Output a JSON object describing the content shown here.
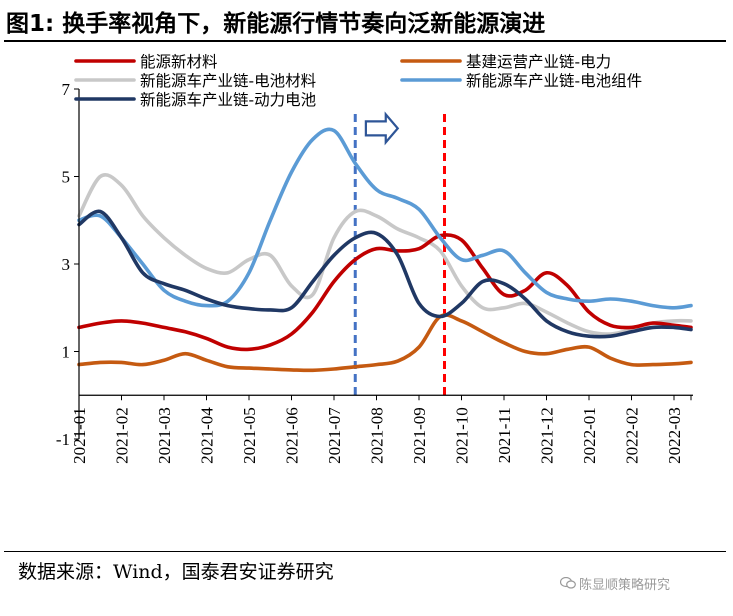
{
  "title": "图1: 换手率视角下，新能源行情节奏向泛新能源演进",
  "source": "数据来源：Wind，国泰君安证券研究",
  "watermark": "陈显顺策略研究",
  "watermark_icon": "wechat-icon",
  "chart_data": {
    "type": "line",
    "xlabel": "",
    "ylabel": "",
    "ylim": [
      -1,
      7
    ],
    "yticks": [
      -1,
      1,
      3,
      5,
      7
    ],
    "x_tick_labels": [
      "2021-01",
      "2021-02",
      "2021-03",
      "2021-04",
      "2021-05",
      "2021-06",
      "2021-07",
      "2021-08",
      "2021-09",
      "2021-10",
      "2021-11",
      "2021-12",
      "2022-01",
      "2022-02",
      "2022-03"
    ],
    "x_range": [
      0,
      14.4
    ],
    "grid": false,
    "legend_position": "top",
    "series": [
      {
        "name": "能源新材料",
        "color": "#C00000",
        "x": [
          0,
          0.5,
          1,
          1.5,
          2,
          2.5,
          3,
          3.5,
          4,
          4.5,
          5,
          5.5,
          6,
          6.5,
          7,
          7.5,
          8,
          8.5,
          9,
          9.5,
          10,
          10.5,
          11,
          11.5,
          12,
          12.5,
          13,
          13.5,
          14,
          14.4
        ],
        "y": [
          1.55,
          1.65,
          1.7,
          1.65,
          1.55,
          1.45,
          1.3,
          1.1,
          1.05,
          1.15,
          1.4,
          1.9,
          2.6,
          3.1,
          3.35,
          3.3,
          3.35,
          3.65,
          3.55,
          2.9,
          2.3,
          2.4,
          2.8,
          2.5,
          1.9,
          1.6,
          1.55,
          1.65,
          1.6,
          1.55
        ]
      },
      {
        "name": "基建运营产业链-电力",
        "color": "#C55A11",
        "x": [
          0,
          0.5,
          1,
          1.5,
          2,
          2.5,
          3,
          3.5,
          4,
          4.5,
          5,
          5.5,
          6,
          6.5,
          7,
          7.5,
          8,
          8.5,
          9,
          9.5,
          10,
          10.5,
          11,
          11.5,
          12,
          12.5,
          13,
          13.5,
          14,
          14.4
        ],
        "y": [
          0.7,
          0.75,
          0.75,
          0.7,
          0.8,
          0.95,
          0.8,
          0.65,
          0.62,
          0.6,
          0.58,
          0.57,
          0.6,
          0.65,
          0.7,
          0.78,
          1.1,
          1.8,
          1.7,
          1.45,
          1.2,
          1.0,
          0.95,
          1.05,
          1.1,
          0.85,
          0.7,
          0.7,
          0.72,
          0.75
        ]
      },
      {
        "name": "新能源车产业链-电池材料",
        "color": "#C8C8C8",
        "x": [
          0,
          0.5,
          1,
          1.5,
          2,
          2.5,
          3,
          3.5,
          4,
          4.5,
          5,
          5.5,
          6,
          6.5,
          7,
          7.5,
          8,
          8.5,
          9,
          9.5,
          10,
          10.5,
          11,
          11.5,
          12,
          12.5,
          13,
          13.5,
          14,
          14.4
        ],
        "y": [
          4.1,
          5.0,
          4.8,
          4.1,
          3.6,
          3.2,
          2.9,
          2.8,
          3.1,
          3.2,
          2.5,
          2.3,
          3.6,
          4.2,
          4.1,
          3.8,
          3.6,
          3.3,
          2.5,
          2.0,
          2.0,
          2.1,
          1.9,
          1.65,
          1.45,
          1.4,
          1.5,
          1.65,
          1.7,
          1.7
        ]
      },
      {
        "name": "新能源车产业链-电池组件",
        "color": "#5B9BD5",
        "x": [
          0,
          0.5,
          1,
          1.5,
          2,
          2.5,
          3,
          3.5,
          4,
          4.5,
          5,
          5.5,
          6,
          6.5,
          7,
          7.5,
          8,
          8.5,
          9,
          9.5,
          10,
          10.5,
          11,
          11.5,
          12,
          12.5,
          13,
          13.5,
          14,
          14.4
        ],
        "y": [
          4.0,
          4.1,
          3.6,
          3.0,
          2.4,
          2.15,
          2.05,
          2.15,
          2.8,
          4.0,
          5.1,
          5.85,
          6.05,
          5.3,
          4.7,
          4.5,
          4.25,
          3.6,
          3.1,
          3.2,
          3.3,
          2.8,
          2.35,
          2.2,
          2.15,
          2.2,
          2.15,
          2.05,
          2.0,
          2.05
        ]
      },
      {
        "name": "新能源车产业链-动力电池",
        "color": "#203864",
        "x": [
          0,
          0.5,
          1,
          1.5,
          2,
          2.5,
          3,
          3.5,
          4,
          4.5,
          5,
          5.5,
          6,
          6.5,
          7,
          7.5,
          8,
          8.5,
          9,
          9.5,
          10,
          10.5,
          11,
          11.5,
          12,
          12.5,
          13,
          13.5,
          14,
          14.4
        ],
        "y": [
          3.9,
          4.2,
          3.6,
          2.8,
          2.55,
          2.4,
          2.2,
          2.05,
          1.98,
          1.95,
          2.0,
          2.6,
          3.2,
          3.6,
          3.7,
          3.2,
          2.1,
          1.8,
          2.1,
          2.6,
          2.55,
          2.2,
          1.7,
          1.45,
          1.35,
          1.35,
          1.45,
          1.55,
          1.55,
          1.5
        ]
      }
    ],
    "annotations": [
      {
        "type": "vertical-dashed-line",
        "color": "#4472C4",
        "x": 6.5
      },
      {
        "type": "vertical-dashed-line",
        "color": "#FF0000",
        "x": 8.6
      },
      {
        "type": "right-arrow",
        "color": "#2E5597",
        "x_from": 6.75,
        "x_to": 7.5,
        "y": 6.1
      }
    ]
  }
}
